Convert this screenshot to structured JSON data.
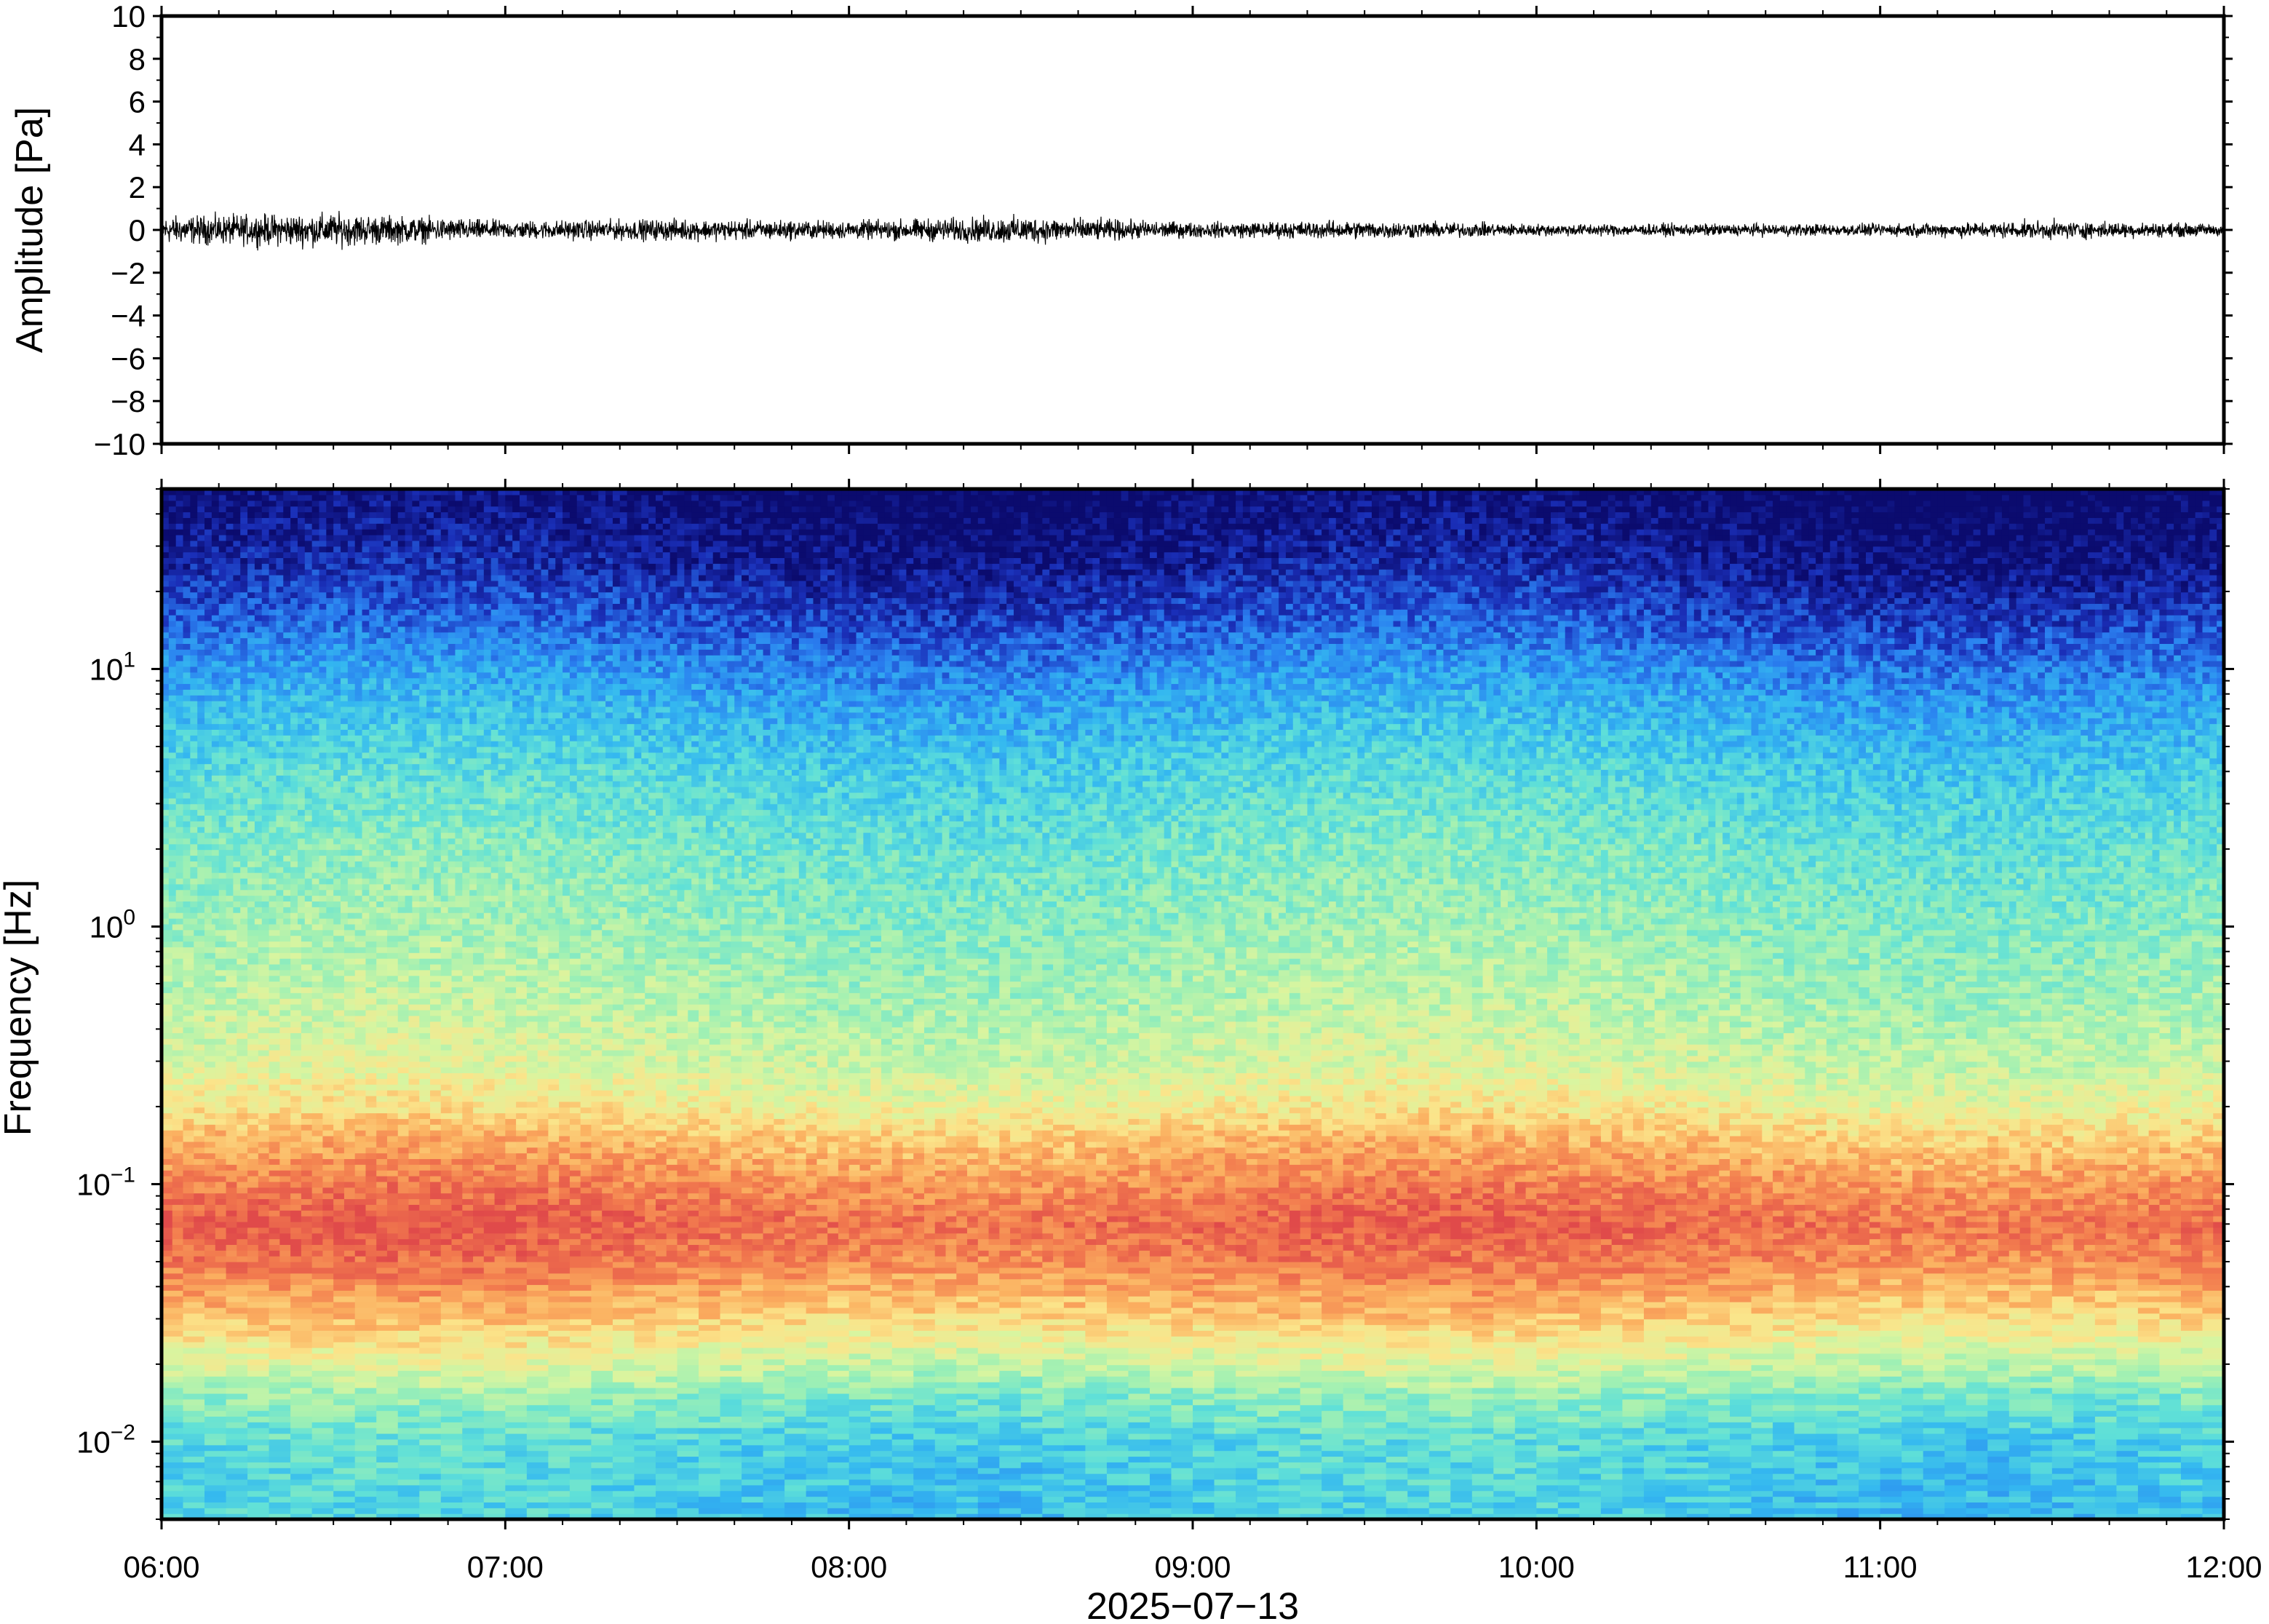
{
  "chart_data": [
    {
      "type": "line",
      "ylabel": "Amplitude [Pa]",
      "xlabel": "",
      "ylim": [
        -10,
        10
      ],
      "xlim": [
        "06:00",
        "12:00"
      ],
      "y_ticks": [
        "10",
        "8",
        "6",
        "4",
        "2",
        "0",
        "−2",
        "−4",
        "−6",
        "−8",
        "−10"
      ],
      "y_tick_values": [
        10,
        8,
        6,
        4,
        2,
        0,
        -2,
        -4,
        -6,
        -8,
        -10
      ],
      "series": [
        {
          "values_description_free": true,
          "time_hours": [
            6.0,
            6.5,
            7.0,
            7.5,
            8.0,
            8.5,
            9.0,
            9.5,
            10.0,
            10.5,
            11.0,
            11.5,
            12.0
          ],
          "envelope_pa": [
            0.9,
            1.1,
            0.6,
            0.7,
            0.6,
            0.9,
            0.5,
            0.6,
            0.4,
            0.4,
            0.4,
            0.6,
            0.4
          ]
        }
      ],
      "line_color": "#000000"
    },
    {
      "type": "heatmap",
      "ylabel": "Frequency [Hz]",
      "xlabel": "2025−07−13",
      "yscale": "log",
      "ylim": [
        0.005,
        50
      ],
      "xlim": [
        "06:00",
        "12:00"
      ],
      "x_ticks": [
        "06:00",
        "07:00",
        "08:00",
        "09:00",
        "10:00",
        "11:00",
        "12:00"
      ],
      "x_tick_hours": [
        6,
        7,
        8,
        9,
        10,
        11,
        12
      ],
      "y_ticks": [
        {
          "base": "10",
          "exp": "−2",
          "value": 0.01
        },
        {
          "base": "10",
          "exp": "−1",
          "value": 0.1
        },
        {
          "base": "10",
          "exp": "0",
          "value": 1
        },
        {
          "base": "10",
          "exp": "1",
          "value": 10
        }
      ],
      "colormap": [
        "#0b0b6e",
        "#1a2fb8",
        "#2a7ff0",
        "#34b8f0",
        "#5fe0d8",
        "#9ef0b4",
        "#d8f5a0",
        "#fbe48a",
        "#fbb060",
        "#f27a4e",
        "#e04a4a"
      ],
      "power_profile_by_frequency_hz": [
        {
          "f": 0.005,
          "level": 0.35
        },
        {
          "f": 0.01,
          "level": 0.38
        },
        {
          "f": 0.015,
          "level": 0.48
        },
        {
          "f": 0.02,
          "level": 0.6
        },
        {
          "f": 0.03,
          "level": 0.75
        },
        {
          "f": 0.05,
          "level": 0.9
        },
        {
          "f": 0.07,
          "level": 0.95
        },
        {
          "f": 0.1,
          "level": 0.88
        },
        {
          "f": 0.15,
          "level": 0.78
        },
        {
          "f": 0.2,
          "level": 0.68
        },
        {
          "f": 0.3,
          "level": 0.6
        },
        {
          "f": 0.5,
          "level": 0.55
        },
        {
          "f": 1,
          "level": 0.5
        },
        {
          "f": 2,
          "level": 0.45
        },
        {
          "f": 4,
          "level": 0.38
        },
        {
          "f": 7,
          "level": 0.3
        },
        {
          "f": 10,
          "level": 0.24
        },
        {
          "f": 15,
          "level": 0.16
        },
        {
          "f": 25,
          "level": 0.07
        },
        {
          "f": 50,
          "level": 0.0
        }
      ]
    }
  ]
}
